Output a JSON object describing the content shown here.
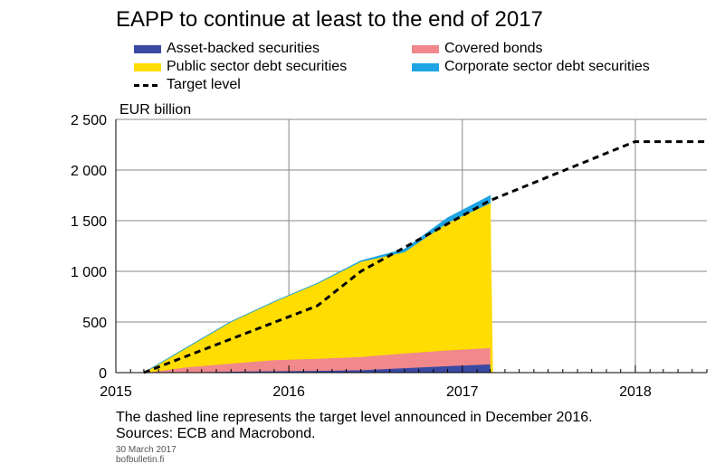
{
  "chart_data": {
    "type": "area",
    "title": "EAPP to continue at least to the end of 2017",
    "ylabel": "EUR billion",
    "xlabel": "",
    "ylim": [
      0,
      2500
    ],
    "xlim": [
      "2015-01-01",
      "2018-06-01"
    ],
    "x_tick_labels": [
      "2015",
      "2016",
      "2017",
      "2018"
    ],
    "y_tick_labels": [
      "0",
      "500",
      "1 000",
      "1 500",
      "2 000",
      "2 500"
    ],
    "y_ticks": [
      0,
      500,
      1000,
      1500,
      2000,
      2500
    ],
    "grid": true,
    "legend_position": "top",
    "dates": [
      "2015-03-01",
      "2015-06-01",
      "2015-09-01",
      "2015-12-01",
      "2016-03-01",
      "2016-06-01",
      "2016-09-01",
      "2016-12-01",
      "2017-03-01"
    ],
    "series": [
      {
        "name": "Asset-backed securities",
        "color": "#3a4aa3",
        "values": [
          0,
          7,
          13,
          18,
          21,
          28,
          48,
          68,
          86
        ]
      },
      {
        "name": "Covered bonds",
        "color": "#f0888c",
        "values": [
          0,
          50,
          80,
          110,
          120,
          130,
          145,
          155,
          160
        ]
      },
      {
        "name": "Public sector debt securities",
        "color": "#ffdd00",
        "values": [
          0,
          195,
          410,
          572,
          740,
          940,
          1000,
          1260,
          1430
        ]
      },
      {
        "name": "Corporate sector debt securities",
        "color": "#1ea4e4",
        "values": [
          0,
          0,
          0,
          0,
          0,
          5,
          25,
          45,
          70
        ]
      }
    ],
    "target": {
      "name": "Target level",
      "color": "#000000",
      "style": "dashed",
      "x": [
        "2015-03-01",
        "2016-03-01",
        "2016-06-01",
        "2017-03-01",
        "2017-12-31",
        "2018-06-01"
      ],
      "y": [
        0,
        660,
        1000,
        1700,
        2280,
        2280
      ]
    }
  },
  "notes": {
    "line1": "The dashed line represents the target level announced in December 2016.",
    "line2": "Sources: ECB and Macrobond.",
    "date": "30 March 2017",
    "site": "bofbulletin.fi"
  }
}
